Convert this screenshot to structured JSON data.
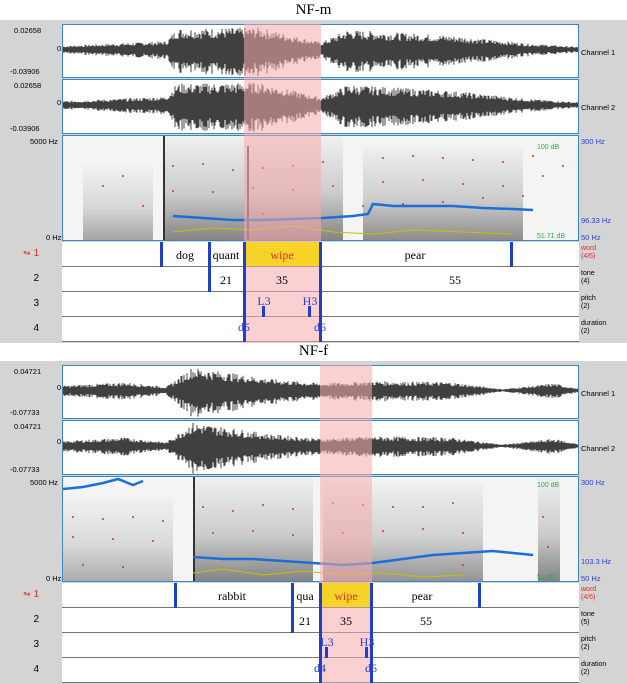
{
  "colors": {
    "selection": "#f8aaaf",
    "boundary": "#1f3fc9",
    "highlight": "#f6d326",
    "pitch": "#1c6fd8",
    "formant": "#e0302a",
    "intensity": "#c9c100"
  },
  "panels": [
    {
      "title": "NF-m",
      "waveform": {
        "ch1_max": "0.02658",
        "ch1_zero": "0",
        "ch1_min": "-0.03906",
        "ch2_max": "0.02658",
        "ch2_zero": "0",
        "ch2_min": "-0.03906",
        "ch1_label": "Channel 1",
        "ch2_label": "Channel 2"
      },
      "spectrogram": {
        "top_freq": "5000 Hz",
        "bottom_freq": "0 Hz",
        "pitch_top": "300 Hz",
        "pitch_value": "96.33 Hz",
        "pitch_bottom": "50 Hz",
        "intensity_top": "100 dB",
        "intensity_value": "51.71 dB",
        "intensity_bottom": "50 dB"
      },
      "tiers": [
        {
          "num": "1",
          "name": "word",
          "count": "(4/6)",
          "intervals": [
            "dog",
            "quant",
            "wipe",
            "pear"
          ]
        },
        {
          "num": "2",
          "name": "tone",
          "count": "(4)",
          "intervals": [
            "21",
            "35",
            "55"
          ]
        },
        {
          "num": "3",
          "name": "pitch",
          "count": "(2)",
          "points": [
            "L3",
            "H3"
          ]
        },
        {
          "num": "4",
          "name": "duration",
          "count": "(2)",
          "points": [
            "d5",
            "d6"
          ]
        }
      ]
    },
    {
      "title": "NF-f",
      "waveform": {
        "ch1_max": "0.04721",
        "ch1_zero": "0",
        "ch1_min": "-0.07733",
        "ch2_max": "0.04721",
        "ch2_zero": "0",
        "ch2_min": "-0.07733",
        "ch1_label": "Channel 1",
        "ch2_label": "Channel 2"
      },
      "spectrogram": {
        "top_freq": "5000 Hz",
        "bottom_freq": "0 Hz",
        "pitch_top": "300 Hz",
        "pitch_value": "103.3 Hz",
        "pitch_bottom": "50 Hz",
        "intensity_top": "100 dB",
        "intensity_value": "57 dB",
        "intensity_bottom": "50 dB"
      },
      "tiers": [
        {
          "num": "1",
          "name": "word",
          "count": "(4/6)",
          "intervals": [
            "rabbit",
            "qua",
            "wipe",
            "pear"
          ]
        },
        {
          "num": "2",
          "name": "tone",
          "count": "(5)",
          "intervals": [
            "21",
            "35",
            "55"
          ]
        },
        {
          "num": "3",
          "name": "pitch",
          "count": "(2)",
          "points": [
            "L3",
            "H3"
          ]
        },
        {
          "num": "4",
          "name": "duration",
          "count": "(2)",
          "points": [
            "d4",
            "d6"
          ]
        }
      ]
    }
  ]
}
